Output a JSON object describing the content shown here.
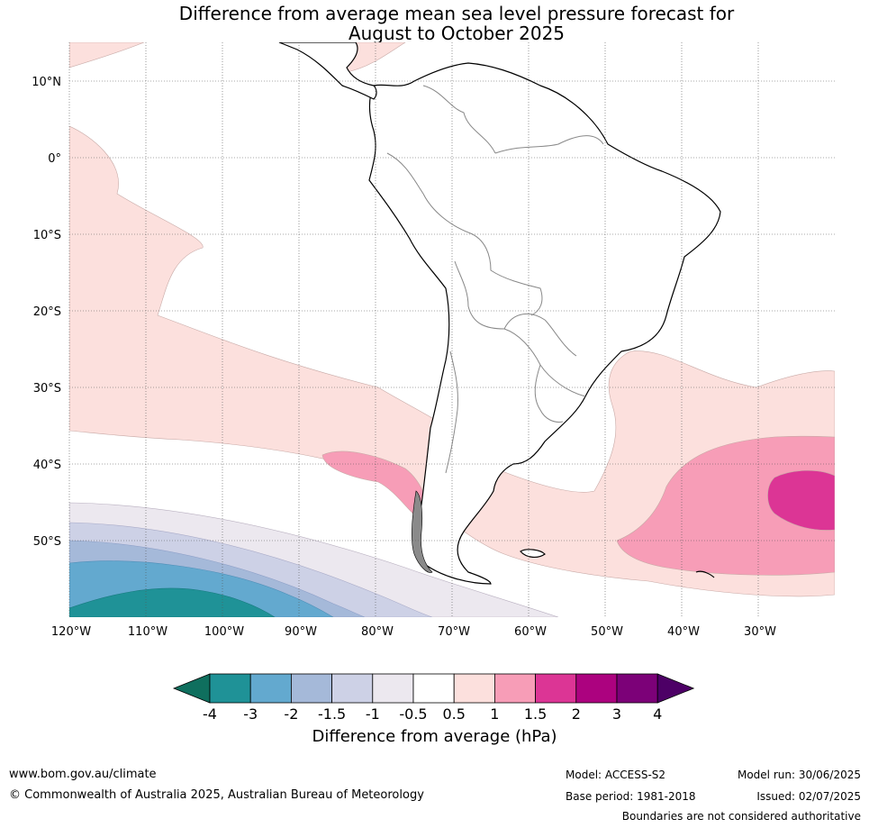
{
  "title_line1": "Difference from average mean sea level pressure forecast for",
  "title_line2": "August to October 2025",
  "lat_ticks": [
    "10°N",
    "0°",
    "10°S",
    "20°S",
    "30°S",
    "40°S",
    "50°S"
  ],
  "lon_ticks": [
    "120°W",
    "110°W",
    "100°W",
    "90°W",
    "80°W",
    "70°W",
    "60°W",
    "50°W",
    "40°W",
    "30°W"
  ],
  "colorbar": {
    "label": "Difference from average (hPa)",
    "tick_labels": [
      "-4",
      "-3",
      "-2",
      "-1.5",
      "-1",
      "-0.5",
      "0.5",
      "1",
      "1.5",
      "2",
      "3",
      "4"
    ],
    "colors": [
      "#0f6f5e",
      "#1f9297",
      "#63a9cf",
      "#a5b9d9",
      "#cdd1e6",
      "#ece8ef",
      "#ffffff",
      "#fce0dd",
      "#f79db7",
      "#dc3595",
      "#ac027f",
      "#7c0178",
      "#4d0066"
    ]
  },
  "footer": {
    "website": "www.bom.gov.au/climate",
    "copyright": "© Commonwealth of Australia 2025, Australian Bureau of Meteorology",
    "model": "Model: ACCESS-S2",
    "base_period": "Base period: 1981-2018",
    "model_run": "Model run: 30/06/2025",
    "issued": "Issued: 02/07/2025",
    "disclaimer": "Boundaries are not considered authoritative"
  }
}
